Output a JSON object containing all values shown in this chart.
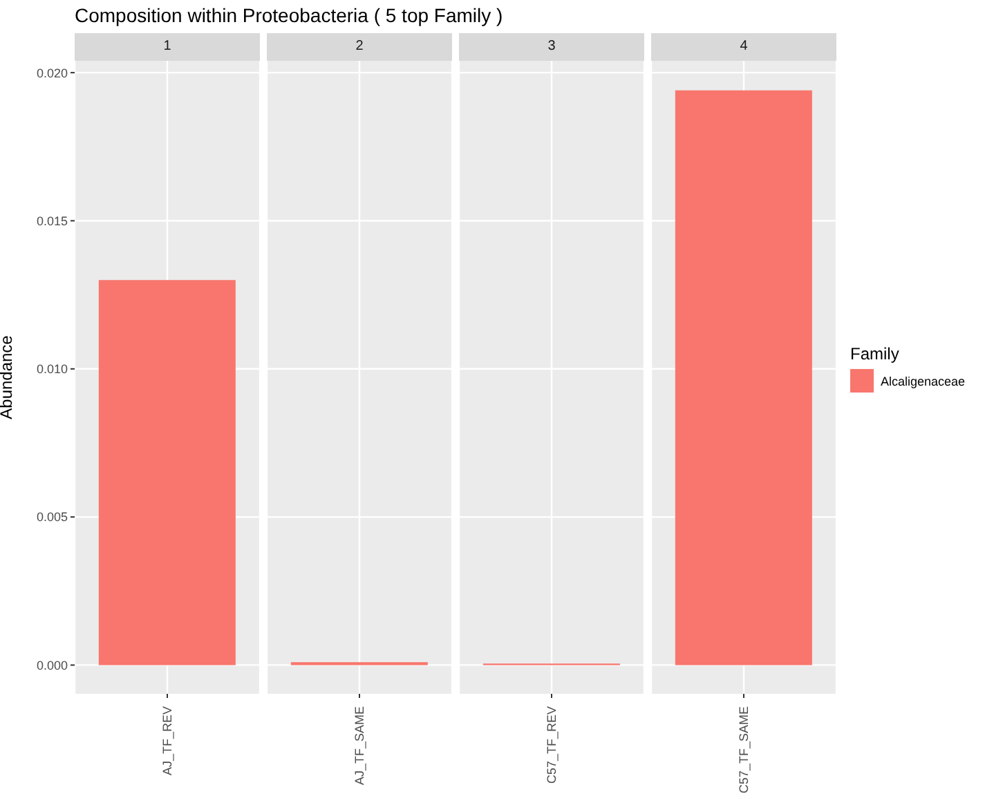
{
  "chart_data": [
    {
      "type": "bar",
      "title": "1",
      "annotations": [
        "Composition within Proteobacteria ( 5 top Family )"
      ],
      "categories": [
        "AJ_TF_REV"
      ],
      "series": [
        {
          "color": "#f8766d",
          "values": [
            0.013
          ]
        }
      ],
      "ylabel": "Abundance",
      "ylim": [
        -0.00097,
        0.0204
      ],
      "yticks": [
        {
          "value": 0,
          "label": "0.000"
        },
        {
          "value": 0.005,
          "label": "0.005"
        },
        {
          "value": 0.01,
          "label": "0.010"
        },
        {
          "value": 0.015,
          "label": "0.015"
        },
        {
          "value": 0.02,
          "label": "0.020"
        }
      ],
      "grid": true
    },
    {
      "type": "bar",
      "title": "2",
      "categories": [
        "AJ_TF_SAME"
      ],
      "series": [
        {
          "color": "#f8766d",
          "values": [
            0.0001
          ]
        }
      ],
      "ylim": [
        -0.00097,
        0.0204
      ],
      "yticks": [
        {
          "value": 0,
          "label": null
        },
        {
          "value": 0.005,
          "label": null
        },
        {
          "value": 0.01,
          "label": null
        },
        {
          "value": 0.015,
          "label": null
        },
        {
          "value": 0.02,
          "label": null
        }
      ],
      "grid": true,
      "tick_labels": "x"
    },
    {
      "type": "bar",
      "title": "3",
      "categories": [
        "C57_TF_REV"
      ],
      "series": [
        {
          "color": "#f8766d",
          "values": [
            5e-05
          ]
        }
      ],
      "ylim": [
        -0.00097,
        0.0204
      ],
      "yticks": [
        {
          "value": 0,
          "label": null
        },
        {
          "value": 0.005,
          "label": null
        },
        {
          "value": 0.01,
          "label": null
        },
        {
          "value": 0.015,
          "label": null
        },
        {
          "value": 0.02,
          "label": null
        }
      ],
      "grid": true,
      "tick_labels": "x"
    },
    {
      "type": "bar",
      "title": "4",
      "categories": [
        "C57_TF_SAME"
      ],
      "series": [
        {
          "name": "Alcaligenaceae",
          "color": "#f8766d",
          "values": [
            0.0194
          ]
        }
      ],
      "ylim": [
        -0.00097,
        0.0204
      ],
      "yticks": [
        {
          "value": 0,
          "label": null
        },
        {
          "value": 0.005,
          "label": null
        },
        {
          "value": 0.01,
          "label": null
        },
        {
          "value": 0.015,
          "label": null
        },
        {
          "value": 0.02,
          "label": null
        }
      ],
      "grid": true,
      "tick_labels": "x",
      "legend": "right",
      "legend_title": "Family"
    }
  ]
}
